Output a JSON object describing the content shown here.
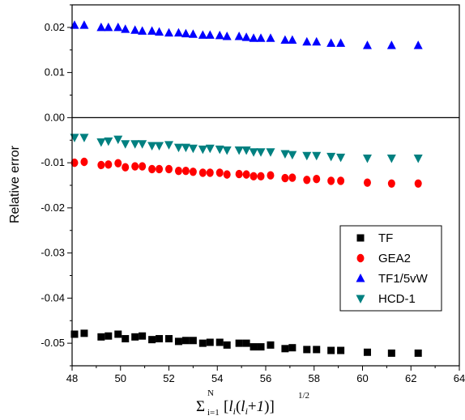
{
  "chart_data": {
    "type": "scatter",
    "xlabel": "Σ_{i=1}^{N}[l_i(l_i+1)]^{1/2}",
    "ylabel": "Relative error",
    "xlim": [
      48,
      64
    ],
    "ylim": [
      -0.055,
      0.025
    ],
    "xticks": [
      "48",
      "50",
      "52",
      "54",
      "56",
      "58",
      "60",
      "62",
      "64"
    ],
    "yticks": [
      "0.02",
      "0.01",
      "0.00",
      "-0.01",
      "-0.02",
      "-0.03",
      "-0.04",
      "-0.05"
    ],
    "zero_line": true,
    "grid": false,
    "legend_position": "lower-right",
    "series": [
      {
        "name": "TF",
        "marker": "square",
        "color": "#000000",
        "x": [
          48.1,
          48.5,
          49.2,
          49.5,
          49.9,
          50.2,
          50.6,
          50.9,
          51.3,
          51.6,
          52.0,
          52.4,
          52.7,
          53.0,
          53.4,
          53.7,
          54.1,
          54.4,
          54.9,
          55.2,
          55.5,
          55.8,
          56.2,
          56.8,
          57.1,
          57.7,
          58.1,
          58.7,
          59.1,
          60.2,
          61.2,
          62.3
        ],
        "y": [
          -0.048,
          -0.0478,
          -0.0486,
          -0.0484,
          -0.048,
          -0.049,
          -0.0486,
          -0.0484,
          -0.0492,
          -0.049,
          -0.049,
          -0.0496,
          -0.0494,
          -0.0494,
          -0.05,
          -0.0498,
          -0.0498,
          -0.0504,
          -0.05,
          -0.05,
          -0.0508,
          -0.0508,
          -0.0504,
          -0.0512,
          -0.051,
          -0.0514,
          -0.0514,
          -0.0516,
          -0.0516,
          -0.052,
          -0.0522,
          -0.0522
        ]
      },
      {
        "name": "GEA2",
        "marker": "circle",
        "color": "#ff0000",
        "x": [
          48.1,
          48.5,
          49.2,
          49.5,
          49.9,
          50.2,
          50.6,
          50.9,
          51.3,
          51.6,
          52.0,
          52.4,
          52.7,
          53.0,
          53.4,
          53.7,
          54.1,
          54.4,
          54.9,
          55.2,
          55.5,
          55.8,
          56.2,
          56.8,
          57.1,
          57.7,
          58.1,
          58.7,
          59.1,
          60.2,
          61.2,
          62.3
        ],
        "y": [
          -0.01,
          -0.0098,
          -0.0105,
          -0.0104,
          -0.0101,
          -0.011,
          -0.0108,
          -0.0108,
          -0.0114,
          -0.0114,
          -0.0114,
          -0.0118,
          -0.0118,
          -0.012,
          -0.0122,
          -0.0122,
          -0.0122,
          -0.0126,
          -0.0125,
          -0.0126,
          -0.013,
          -0.013,
          -0.0128,
          -0.0134,
          -0.0133,
          -0.0138,
          -0.0136,
          -0.014,
          -0.014,
          -0.0144,
          -0.0146,
          -0.0146
        ]
      },
      {
        "name": "TF1/5vW",
        "marker": "triangle-up",
        "color": "#0000ff",
        "x": [
          48.1,
          48.5,
          49.2,
          49.5,
          49.9,
          50.2,
          50.6,
          50.9,
          51.3,
          51.6,
          52.0,
          52.4,
          52.7,
          53.0,
          53.4,
          53.7,
          54.1,
          54.4,
          54.9,
          55.2,
          55.5,
          55.8,
          56.2,
          56.8,
          57.1,
          57.7,
          58.1,
          58.7,
          59.1,
          60.2,
          61.2,
          62.3
        ],
        "y": [
          0.0205,
          0.0205,
          0.02,
          0.02,
          0.02,
          0.0196,
          0.0194,
          0.0192,
          0.0192,
          0.019,
          0.0188,
          0.0188,
          0.0186,
          0.0185,
          0.0183,
          0.0183,
          0.0182,
          0.018,
          0.018,
          0.0178,
          0.0176,
          0.0176,
          0.0176,
          0.0172,
          0.0172,
          0.0168,
          0.0168,
          0.0165,
          0.0165,
          0.016,
          0.016,
          0.016
        ]
      },
      {
        "name": "HCD-1",
        "marker": "triangle-down",
        "color": "#008080",
        "x": [
          48.1,
          48.5,
          49.2,
          49.5,
          49.9,
          50.2,
          50.6,
          50.9,
          51.3,
          51.6,
          52.0,
          52.4,
          52.7,
          53.0,
          53.4,
          53.7,
          54.1,
          54.4,
          54.9,
          55.2,
          55.5,
          55.8,
          56.2,
          56.8,
          57.1,
          57.7,
          58.1,
          58.7,
          59.1,
          60.2,
          61.2,
          62.3
        ],
        "y": [
          -0.0044,
          -0.0044,
          -0.0054,
          -0.0052,
          -0.0048,
          -0.0058,
          -0.0058,
          -0.0058,
          -0.0062,
          -0.0062,
          -0.006,
          -0.0066,
          -0.0066,
          -0.0068,
          -0.007,
          -0.0068,
          -0.007,
          -0.0072,
          -0.0072,
          -0.0072,
          -0.0076,
          -0.0076,
          -0.0076,
          -0.008,
          -0.0082,
          -0.0084,
          -0.0084,
          -0.0086,
          -0.0088,
          -0.009,
          -0.009,
          -0.009
        ]
      }
    ]
  }
}
